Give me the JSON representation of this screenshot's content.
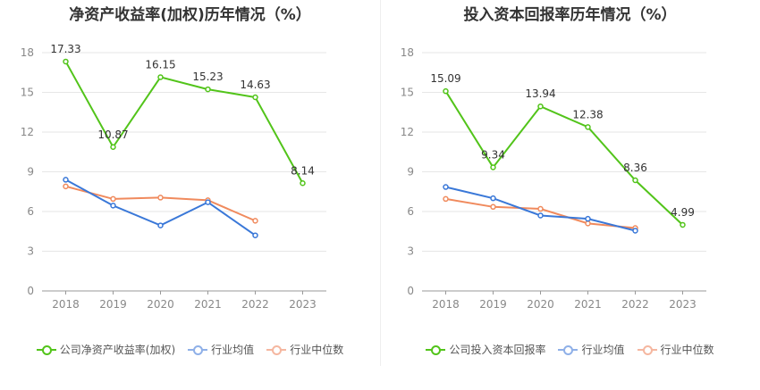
{
  "colors": {
    "company": "#52c41a",
    "avg": "#3a78d8",
    "median": "#f08a5d",
    "avg_legend": "#8fb0e8",
    "median_legend": "#f5b7a0",
    "grid": "#e6e6e6",
    "axis": "#999999"
  },
  "chart_data": [
    {
      "type": "line",
      "title": "净资产收益率(加权)历年情况（%）",
      "categories": [
        "2018",
        "2019",
        "2020",
        "2021",
        "2022",
        "2023"
      ],
      "yticks": [
        "0",
        "3",
        "6",
        "9",
        "12",
        "15",
        "18"
      ],
      "ylim": [
        0,
        18
      ],
      "grid": true,
      "legend_position": "bottom",
      "series": [
        {
          "name": "公司净资产收益率(加权)",
          "values": [
            17.33,
            10.87,
            16.15,
            15.23,
            14.63,
            8.14
          ],
          "labels": [
            "17.33",
            "10.87",
            "16.15",
            "15.23",
            "14.63",
            "8.14"
          ]
        },
        {
          "name": "行业均值",
          "values": [
            8.4,
            6.45,
            4.95,
            6.7,
            4.2,
            null
          ],
          "labels": []
        },
        {
          "name": "行业中位数",
          "values": [
            7.9,
            6.95,
            7.05,
            6.85,
            5.3,
            null
          ],
          "labels": []
        }
      ]
    },
    {
      "type": "line",
      "title": "投入资本回报率历年情况（%）",
      "categories": [
        "2018",
        "2019",
        "2020",
        "2021",
        "2022",
        "2023"
      ],
      "yticks": [
        "0",
        "3",
        "6",
        "9",
        "12",
        "15",
        "18"
      ],
      "ylim": [
        0,
        18
      ],
      "grid": true,
      "legend_position": "bottom",
      "series": [
        {
          "name": "公司投入资本回报率",
          "values": [
            15.09,
            9.34,
            13.94,
            12.38,
            8.36,
            4.99
          ],
          "labels": [
            "15.09",
            "9.34",
            "13.94",
            "12.38",
            "8.36",
            "4.99"
          ]
        },
        {
          "name": "行业均值",
          "values": [
            7.85,
            7.0,
            5.7,
            5.45,
            4.55,
            null
          ],
          "labels": []
        },
        {
          "name": "行业中位数",
          "values": [
            6.95,
            6.35,
            6.2,
            5.1,
            4.75,
            null
          ],
          "labels": []
        }
      ]
    }
  ]
}
